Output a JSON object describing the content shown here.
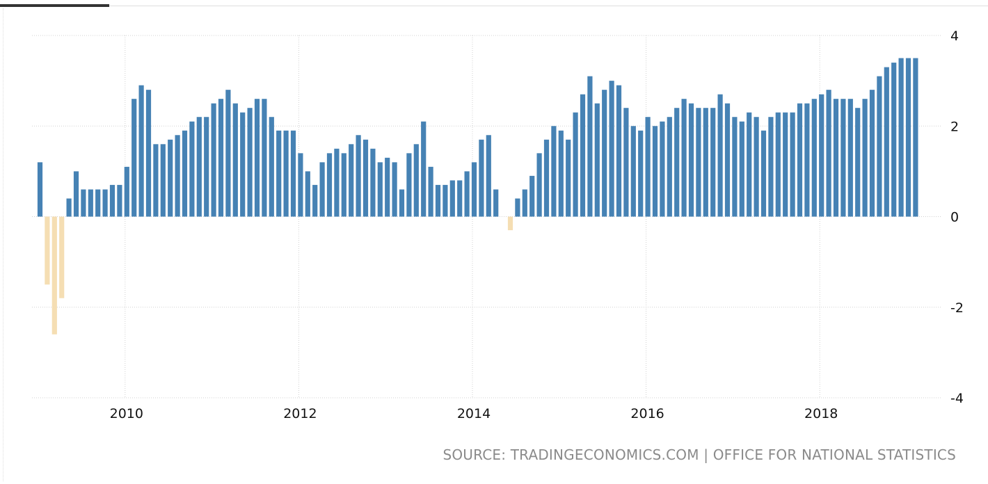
{
  "chart_data": {
    "type": "bar",
    "title": "",
    "xlabel": "",
    "ylabel": "",
    "start": "2009-01",
    "frequency": "monthly",
    "values": [
      1.2,
      -1.5,
      -2.6,
      -1.8,
      0.4,
      1.0,
      0.6,
      0.6,
      0.6,
      0.6,
      0.7,
      0.7,
      1.1,
      2.6,
      2.9,
      2.8,
      1.6,
      1.6,
      1.7,
      1.8,
      1.9,
      2.1,
      2.2,
      2.2,
      2.5,
      2.6,
      2.8,
      2.5,
      2.3,
      2.4,
      2.6,
      2.6,
      2.2,
      1.9,
      1.9,
      1.9,
      1.4,
      1.0,
      0.7,
      1.2,
      1.4,
      1.5,
      1.4,
      1.6,
      1.8,
      1.7,
      1.5,
      1.2,
      1.3,
      1.2,
      0.6,
      1.4,
      1.6,
      2.1,
      1.1,
      0.7,
      0.7,
      0.8,
      0.8,
      1.0,
      1.2,
      1.7,
      1.8,
      0.6,
      0.0,
      -0.3,
      0.4,
      0.6,
      0.9,
      1.4,
      1.7,
      2.0,
      1.9,
      1.7,
      2.3,
      2.7,
      3.1,
      2.5,
      2.8,
      3.0,
      2.9,
      2.4,
      2.0,
      1.9,
      2.2,
      2.0,
      2.1,
      2.2,
      2.4,
      2.6,
      2.5,
      2.4,
      2.4,
      2.4,
      2.7,
      2.5,
      2.2,
      2.1,
      2.3,
      2.2,
      1.9,
      2.2,
      2.3,
      2.3,
      2.3,
      2.5,
      2.5,
      2.6,
      2.7,
      2.8,
      2.6,
      2.6,
      2.6,
      2.4,
      2.6,
      2.8,
      3.1,
      3.3,
      3.4,
      3.5,
      3.5,
      3.5
    ],
    "x_tick_labels": [
      "2010",
      "2012",
      "2014",
      "2016",
      "2018"
    ],
    "y_ticks": [
      4,
      2,
      0,
      -2,
      -4
    ],
    "ylim": [
      -4,
      4
    ],
    "grid": true,
    "colors": {
      "positive": "#4682b4",
      "negative": "#f5deb3"
    }
  },
  "footer": {
    "source": "SOURCE: TRADINGECONOMICS.COM | OFFICE FOR NATIONAL STATISTICS"
  }
}
